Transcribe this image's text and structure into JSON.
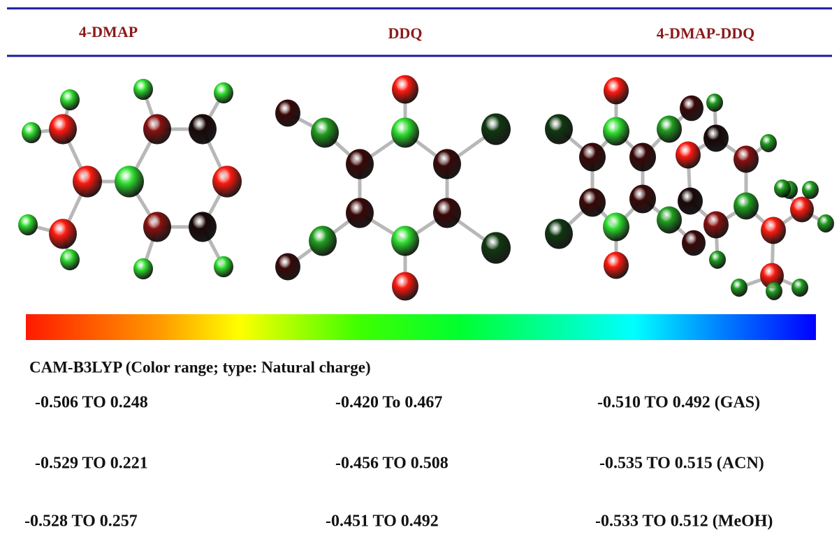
{
  "headers": [
    "4-DMAP",
    "DDQ",
    "4-DMAP-DDQ"
  ],
  "caption": "CAM-B3LYP (Color range; type: Natural charge)",
  "rows": [
    [
      "-0.506 TO 0.248",
      "-0.420 To 0.467",
      "-0.510 TO 0.492 (GAS)"
    ],
    [
      "-0.529 TO 0.221",
      "-0.456 TO 0.508",
      "-0.535 TO 0.515 (ACN)"
    ],
    [
      "-0.528 TO 0.257",
      "-0.451 TO 0.492",
      "-0.533 TO 0.512 (MeOH)"
    ]
  ]
}
